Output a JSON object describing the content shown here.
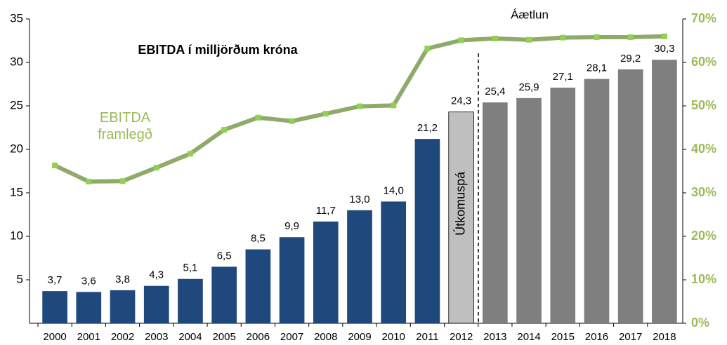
{
  "chart_data": {
    "type": "bar",
    "title": "EBITDA í milljörðum króna",
    "annotations": [
      "Áætlun",
      "Útkomuspá"
    ],
    "categories": [
      "2000",
      "2001",
      "2002",
      "2003",
      "2004",
      "2005",
      "2006",
      "2007",
      "2008",
      "2009",
      "2010",
      "2011",
      "2012",
      "2013",
      "2014",
      "2015",
      "2016",
      "2017",
      "2018"
    ],
    "series": [
      {
        "values": [
          3.7,
          3.6,
          3.8,
          4.3,
          5.1,
          6.5,
          8.5,
          9.9,
          11.7,
          13.0,
          14.0,
          21.2,
          24.3,
          25.4,
          25.9,
          27.1,
          28.1,
          29.2,
          30.3
        ],
        "value_labels": [
          "3,7",
          "3,6",
          "3,8",
          "4,3",
          "5,1",
          "6,5",
          "8,5",
          "9,9",
          "11,7",
          "13,0",
          "14,0",
          "21,2",
          "24,3",
          "25,4",
          "25,9",
          "27,1",
          "28,1",
          "29,2",
          "30,3"
        ],
        "colors": [
          "#1f497d",
          "#1f497d",
          "#1f497d",
          "#1f497d",
          "#1f497d",
          "#1f497d",
          "#1f497d",
          "#1f497d",
          "#1f497d",
          "#1f497d",
          "#1f497d",
          "#1f497d",
          "#bfbfbf",
          "#7f7f7f",
          "#7f7f7f",
          "#7f7f7f",
          "#7f7f7f",
          "#7f7f7f",
          "#7f7f7f"
        ]
      },
      {
        "name": "EBITDA framlegð",
        "type": "line",
        "axis": "y2",
        "color": "#8faa6a",
        "marker_color": "#92d050",
        "values": [
          36.3,
          32.6,
          32.7,
          35.8,
          39.0,
          44.5,
          47.3,
          46.5,
          48.2,
          49.9,
          50.1,
          63.2,
          65.1,
          65.5,
          65.2,
          65.7,
          65.8,
          65.8,
          66.0
        ]
      }
    ],
    "ylim": [
      0,
      35
    ],
    "yticks": [
      5,
      10,
      15,
      20,
      25,
      30,
      35
    ],
    "y2lim": [
      0,
      70
    ],
    "y2ticks": [
      {
        "value": 0,
        "label": "0%"
      },
      {
        "value": 10,
        "label": "10%"
      },
      {
        "value": 20,
        "label": "20%"
      },
      {
        "value": 30,
        "label": "30%"
      },
      {
        "value": 40,
        "label": "40%"
      },
      {
        "value": 50,
        "label": "50%"
      },
      {
        "value": 60,
        "label": "60%"
      },
      {
        "value": 70,
        "label": "70%"
      }
    ],
    "grid": false
  }
}
